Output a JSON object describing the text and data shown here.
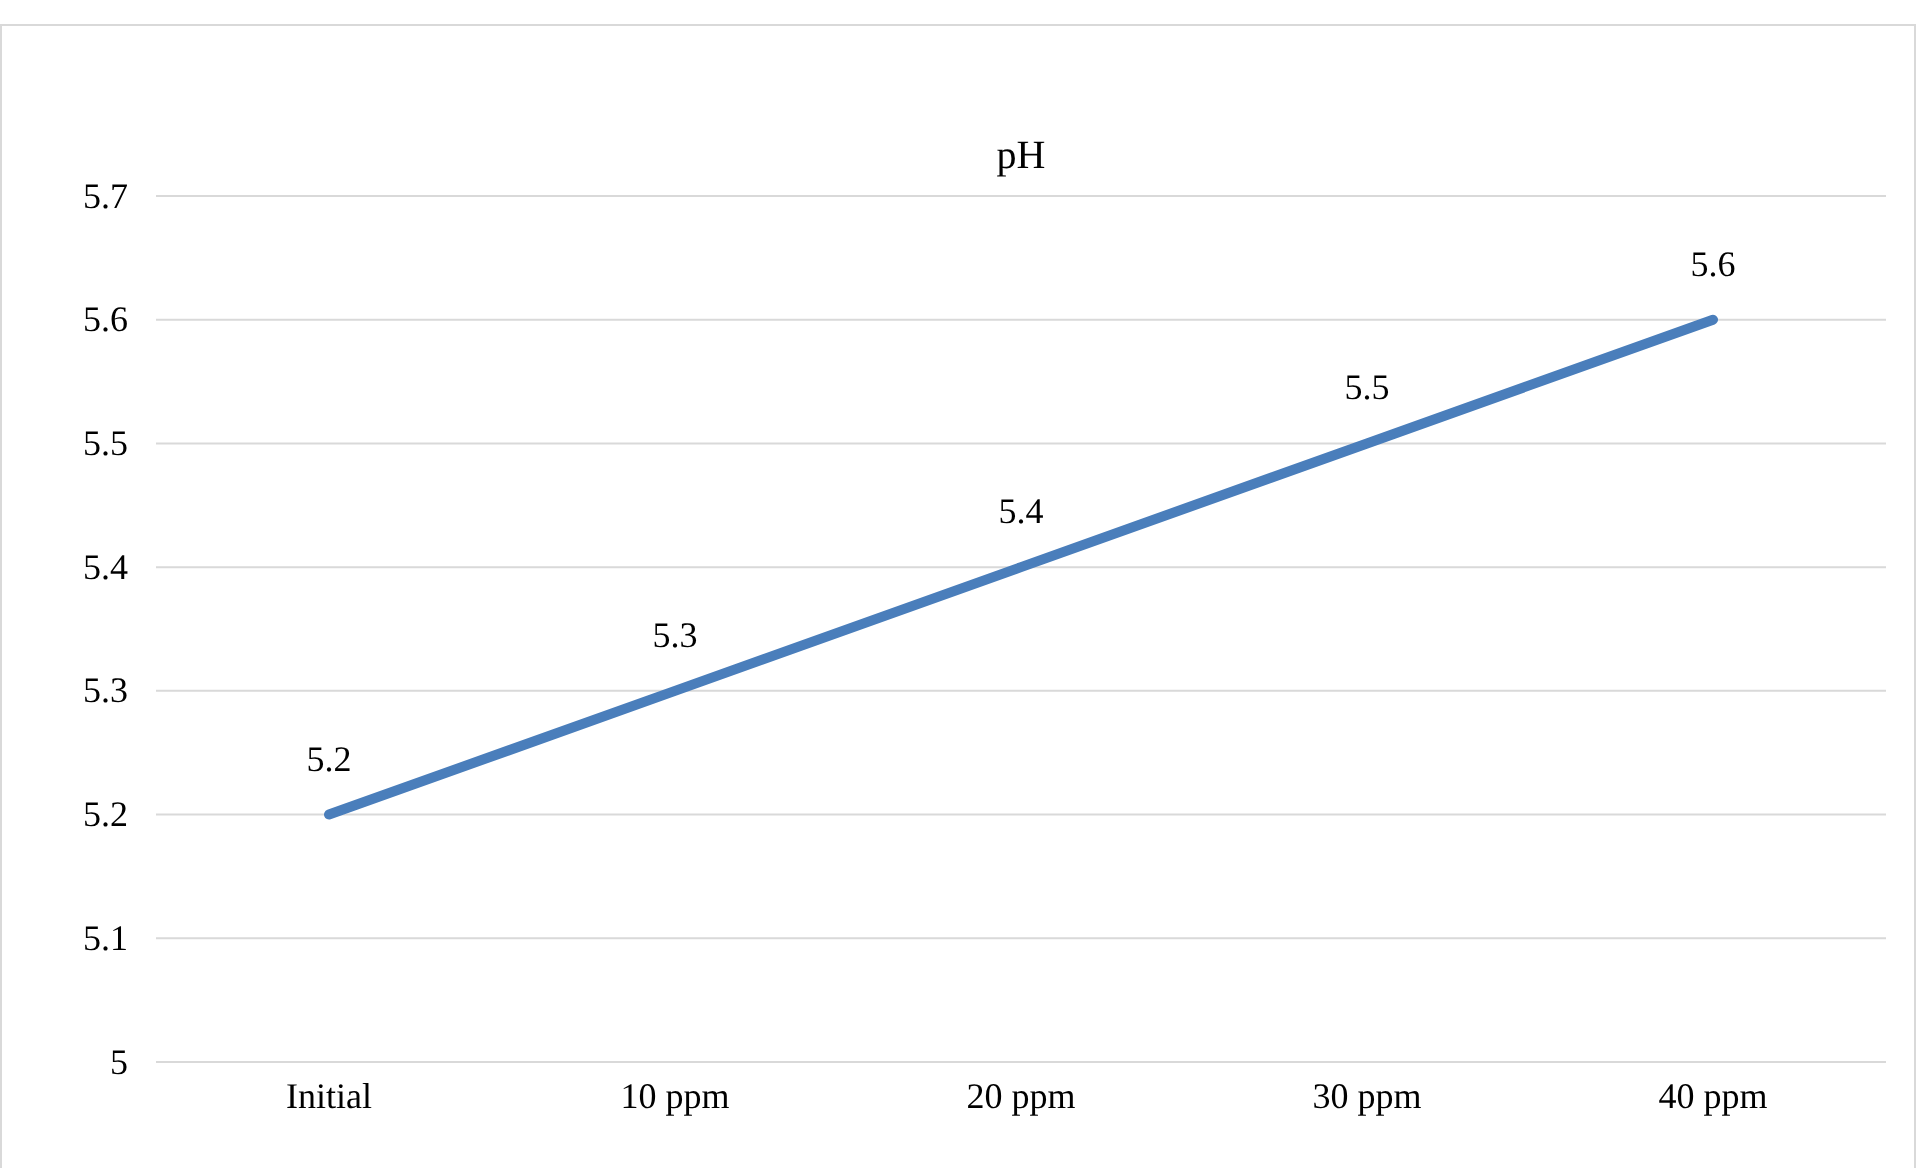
{
  "chart_data": {
    "type": "line",
    "title": "pH",
    "categories": [
      "Initial",
      "10 ppm",
      "20 ppm",
      "30 ppm",
      "40 ppm"
    ],
    "series": [
      {
        "color": "#4a7ebb",
        "values": [
          5.2,
          5.3,
          5.4,
          5.5,
          5.6
        ]
      }
    ],
    "ylim": [
      5,
      5.7
    ],
    "yticks": [
      5,
      5.1,
      5.2,
      5.3,
      5.4,
      5.5,
      5.6,
      5.7
    ],
    "grid": "y",
    "data_labels": true,
    "marker": "none",
    "line_style": "solid"
  }
}
